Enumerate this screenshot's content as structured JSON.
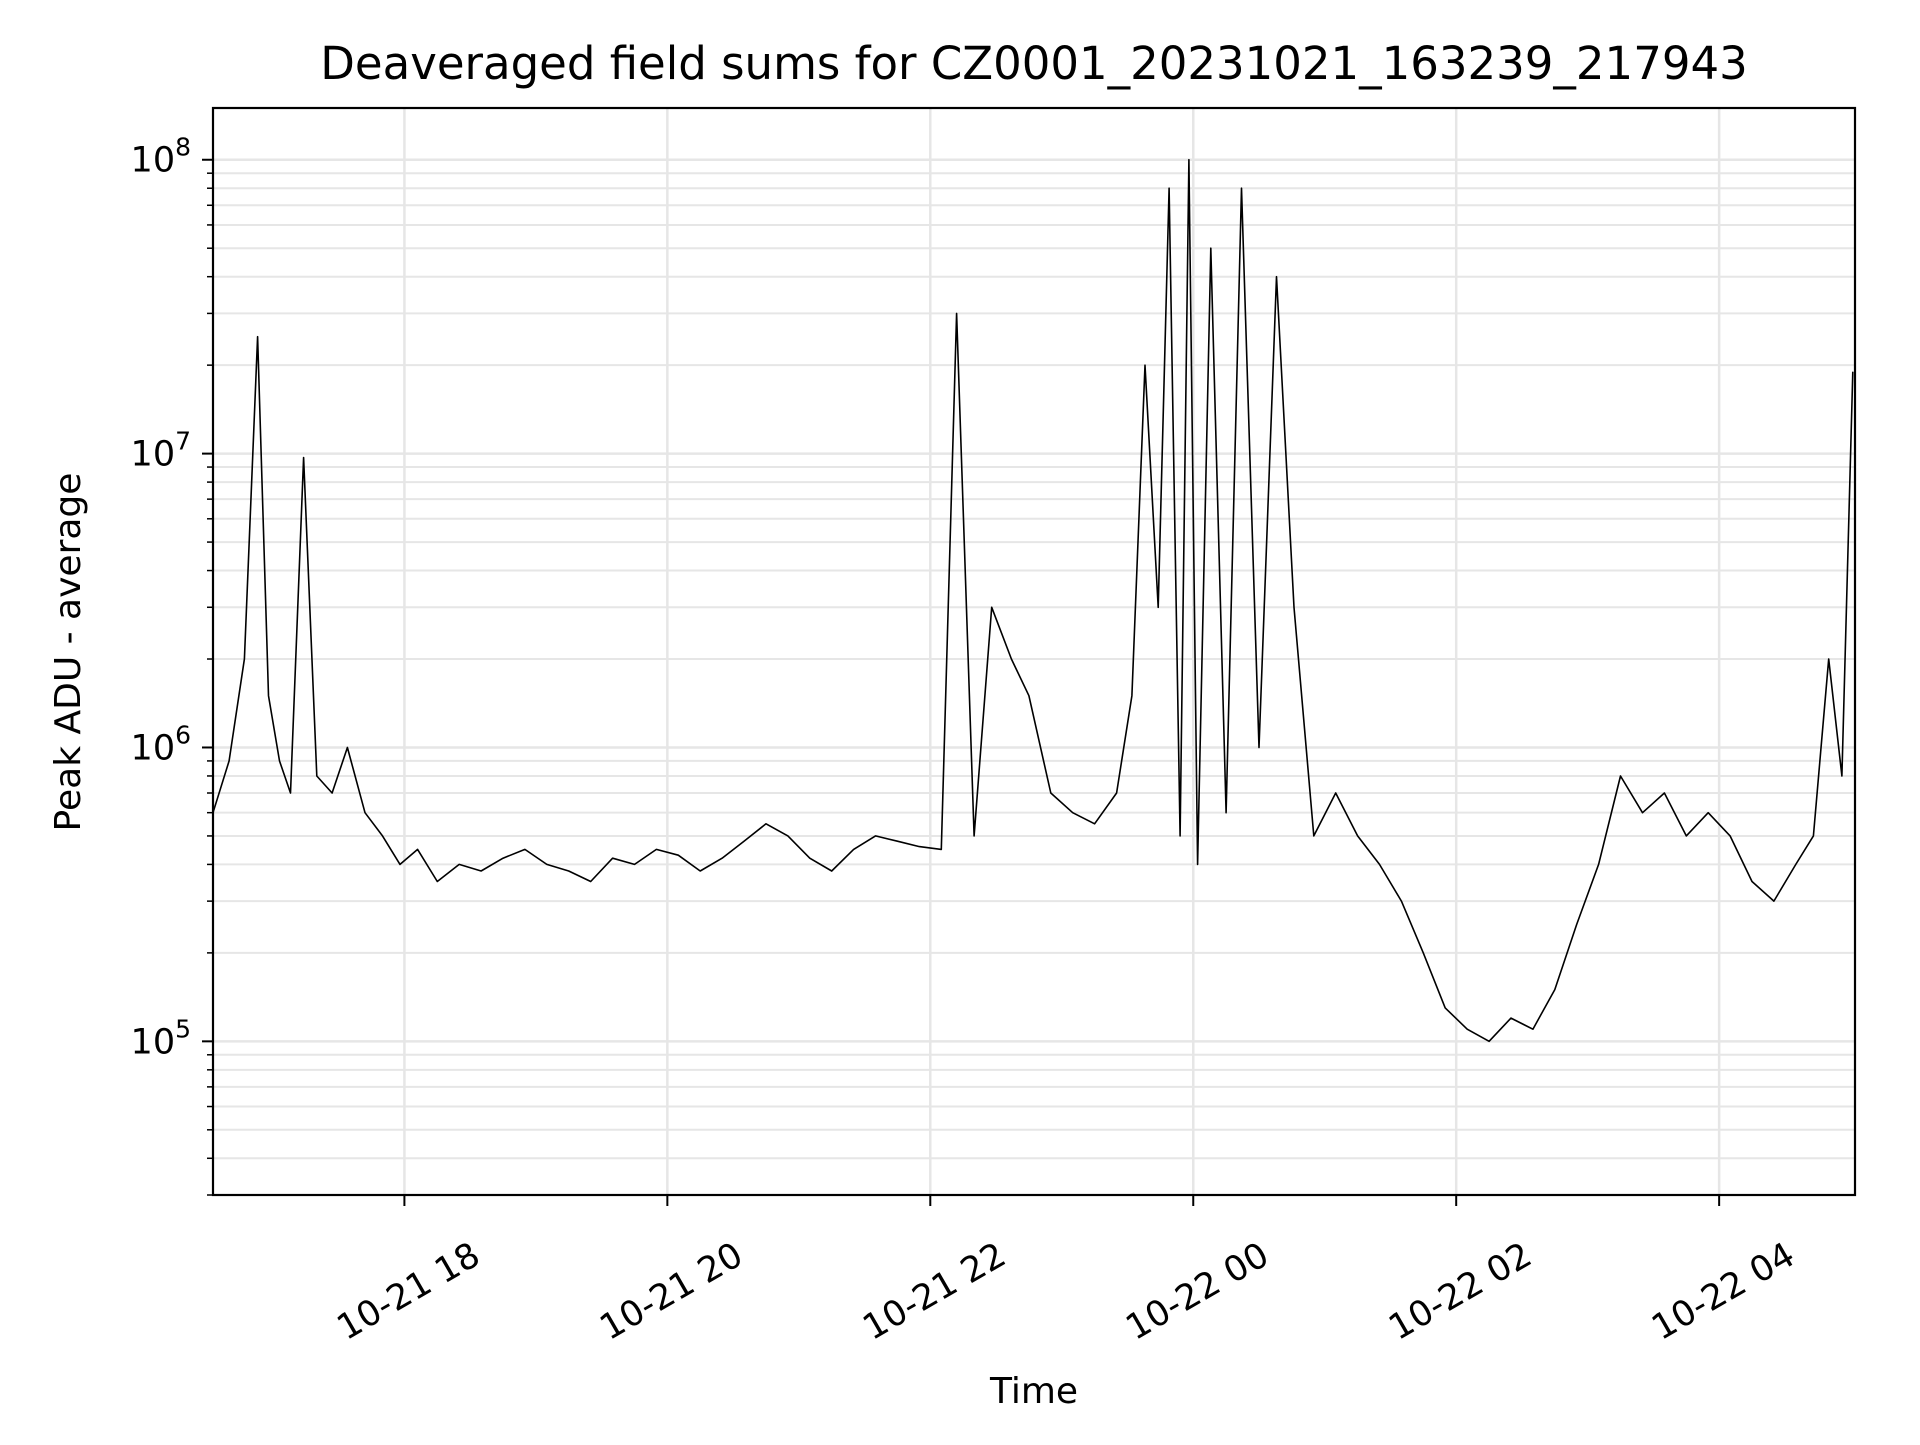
{
  "chart_data": {
    "type": "line",
    "title": "Deaveraged field sums for CZ0001_20231021_163239_217943",
    "xlabel": "Time",
    "ylabel": "Peak ADU - average",
    "yscale": "log",
    "xlim": [
      "2023-10-21T16:32:39",
      "2023-10-22T05:02:00"
    ],
    "ylim": [
      30000,
      150000000
    ],
    "grid": true,
    "line_color": "#000000",
    "grid_color": "#e6e6e6",
    "x_ticks": [
      {
        "value": "2023-10-21T18:00:00",
        "label": "10-21 18"
      },
      {
        "value": "2023-10-21T20:00:00",
        "label": "10-21 20"
      },
      {
        "value": "2023-10-21T22:00:00",
        "label": "10-21 22"
      },
      {
        "value": "2023-10-22T00:00:00",
        "label": "10-22 00"
      },
      {
        "value": "2023-10-22T02:00:00",
        "label": "10-22 02"
      },
      {
        "value": "2023-10-22T04:00:00",
        "label": "10-22 04"
      }
    ],
    "y_ticks": [
      {
        "value": 100000,
        "base": "10",
        "exp": "5"
      },
      {
        "value": 1000000,
        "base": "10",
        "exp": "6"
      },
      {
        "value": 10000000,
        "base": "10",
        "exp": "7"
      },
      {
        "value": 100000000,
        "base": "10",
        "exp": "8"
      }
    ],
    "series": [
      {
        "x": [
          "2023-10-21T16:32:39",
          "2023-10-21T16:40:00",
          "2023-10-21T16:47:00",
          "2023-10-21T16:53:00",
          "2023-10-21T16:58:00",
          "2023-10-21T17:03:00",
          "2023-10-21T17:08:00",
          "2023-10-21T17:14:00",
          "2023-10-21T17:20:00",
          "2023-10-21T17:27:00",
          "2023-10-21T17:34:00",
          "2023-10-21T17:42:00",
          "2023-10-21T17:50:00",
          "2023-10-21T17:58:00",
          "2023-10-21T18:06:00",
          "2023-10-21T18:15:00",
          "2023-10-21T18:25:00",
          "2023-10-21T18:35:00",
          "2023-10-21T18:45:00",
          "2023-10-21T18:55:00",
          "2023-10-21T19:05:00",
          "2023-10-21T19:15:00",
          "2023-10-21T19:25:00",
          "2023-10-21T19:35:00",
          "2023-10-21T19:45:00",
          "2023-10-21T19:55:00",
          "2023-10-21T20:05:00",
          "2023-10-21T20:15:00",
          "2023-10-21T20:25:00",
          "2023-10-21T20:35:00",
          "2023-10-21T20:45:00",
          "2023-10-21T20:55:00",
          "2023-10-21T21:05:00",
          "2023-10-21T21:15:00",
          "2023-10-21T21:25:00",
          "2023-10-21T21:35:00",
          "2023-10-21T21:45:00",
          "2023-10-21T21:55:00",
          "2023-10-21T22:05:00",
          "2023-10-21T22:12:00",
          "2023-10-21T22:20:00",
          "2023-10-21T22:28:00",
          "2023-10-21T22:37:00",
          "2023-10-21T22:45:00",
          "2023-10-21T22:55:00",
          "2023-10-21T23:05:00",
          "2023-10-21T23:15:00",
          "2023-10-21T23:25:00",
          "2023-10-21T23:32:00",
          "2023-10-21T23:38:00",
          "2023-10-21T23:44:00",
          "2023-10-21T23:49:00",
          "2023-10-21T23:54:00",
          "2023-10-21T23:58:00",
          "2023-10-22T00:02:00",
          "2023-10-22T00:08:00",
          "2023-10-22T00:15:00",
          "2023-10-22T00:22:00",
          "2023-10-22T00:30:00",
          "2023-10-22T00:38:00",
          "2023-10-22T00:46:00",
          "2023-10-22T00:55:00",
          "2023-10-22T01:05:00",
          "2023-10-22T01:15:00",
          "2023-10-22T01:25:00",
          "2023-10-22T01:35:00",
          "2023-10-22T01:45:00",
          "2023-10-22T01:55:00",
          "2023-10-22T02:05:00",
          "2023-10-22T02:15:00",
          "2023-10-22T02:25:00",
          "2023-10-22T02:35:00",
          "2023-10-22T02:45:00",
          "2023-10-22T02:55:00",
          "2023-10-22T03:05:00",
          "2023-10-22T03:15:00",
          "2023-10-22T03:25:00",
          "2023-10-22T03:35:00",
          "2023-10-22T03:45:00",
          "2023-10-22T03:55:00",
          "2023-10-22T04:05:00",
          "2023-10-22T04:15:00",
          "2023-10-22T04:25:00",
          "2023-10-22T04:35:00",
          "2023-10-22T04:43:00",
          "2023-10-22T04:50:00",
          "2023-10-22T04:56:00",
          "2023-10-22T05:01:00"
        ],
        "y": [
          600000,
          900000,
          2000000,
          25000000,
          1500000,
          900000,
          700000,
          9700000,
          800000,
          700000,
          1000000,
          600000,
          500000,
          400000,
          450000,
          350000,
          400000,
          380000,
          420000,
          450000,
          400000,
          380000,
          350000,
          420000,
          400000,
          450000,
          430000,
          380000,
          420000,
          480000,
          550000,
          500000,
          420000,
          380000,
          450000,
          500000,
          480000,
          460000,
          450000,
          30000000,
          500000,
          3000000,
          2000000,
          1500000,
          700000,
          600000,
          550000,
          700000,
          1500000,
          20000000,
          3000000,
          80000000,
          500000,
          100000000,
          400000,
          50000000,
          600000,
          80000000,
          1000000,
          40000000,
          3000000,
          500000,
          700000,
          500000,
          400000,
          300000,
          200000,
          130000,
          110000,
          100000,
          120000,
          110000,
          150000,
          250000,
          400000,
          800000,
          600000,
          700000,
          500000,
          600000,
          500000,
          350000,
          300000,
          400000,
          500000,
          2000000,
          800000,
          19000000
        ]
      }
    ]
  }
}
